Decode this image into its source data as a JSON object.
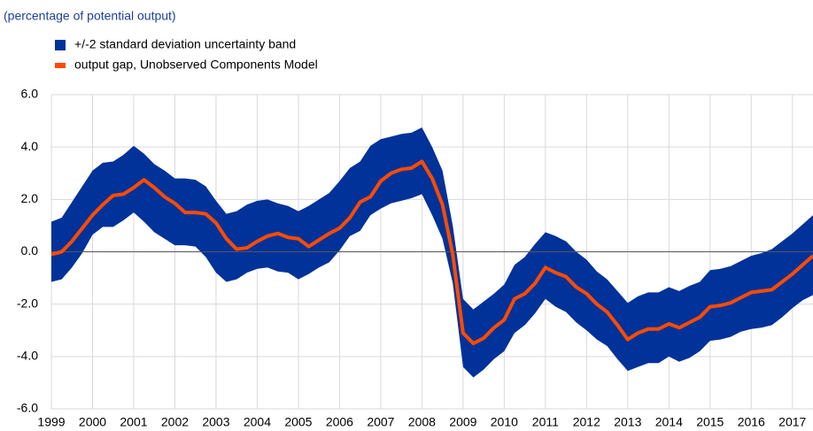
{
  "chart_data": {
    "type": "band-line",
    "subtitle": "(percentage of potential output)",
    "x": [
      1999,
      1999.25,
      1999.5,
      1999.75,
      2000,
      2000.25,
      2000.5,
      2000.75,
      2001,
      2001.25,
      2001.5,
      2001.75,
      2002,
      2002.25,
      2002.5,
      2002.75,
      2003,
      2003.25,
      2003.5,
      2003.75,
      2004,
      2004.25,
      2004.5,
      2004.75,
      2005,
      2005.25,
      2005.5,
      2005.75,
      2006,
      2006.25,
      2006.5,
      2006.75,
      2007,
      2007.25,
      2007.5,
      2007.75,
      2008,
      2008.25,
      2008.5,
      2008.75,
      2009,
      2009.25,
      2009.5,
      2009.75,
      2010,
      2010.25,
      2010.5,
      2010.75,
      2011,
      2011.25,
      2011.5,
      2011.75,
      2012,
      2012.25,
      2012.5,
      2012.75,
      2013,
      2013.25,
      2013.5,
      2013.75,
      2014,
      2014.25,
      2014.5,
      2014.75,
      2015,
      2015.25,
      2015.5,
      2015.75,
      2016,
      2016.25,
      2016.5,
      2016.75,
      2017,
      2017.25,
      2017.5
    ],
    "series": [
      {
        "name": "+/-2 standard deviation uncertainty band",
        "color": "#003299",
        "upper": [
          1.15,
          1.3,
          1.9,
          2.5,
          3.1,
          3.4,
          3.45,
          3.7,
          4.05,
          3.75,
          3.35,
          3.1,
          2.8,
          2.8,
          2.75,
          2.5,
          1.95,
          1.45,
          1.55,
          1.8,
          1.95,
          2.0,
          1.85,
          1.75,
          1.55,
          1.75,
          2.0,
          2.25,
          2.7,
          3.2,
          3.45,
          4.05,
          4.3,
          4.4,
          4.5,
          4.55,
          4.75,
          4.0,
          3.1,
          1.0,
          -1.8,
          -2.2,
          -1.9,
          -1.6,
          -1.25,
          -0.5,
          -0.2,
          0.3,
          0.75,
          0.6,
          0.4,
          0.0,
          -0.3,
          -0.75,
          -1.05,
          -1.5,
          -1.95,
          -1.7,
          -1.55,
          -1.55,
          -1.35,
          -1.5,
          -1.3,
          -1.15,
          -0.7,
          -0.65,
          -0.55,
          -0.35,
          -0.15,
          -0.05,
          0.1,
          0.4,
          0.7,
          1.05,
          1.4
        ],
        "lower": [
          -1.15,
          -1.05,
          -0.6,
          -0.05,
          0.65,
          0.95,
          0.95,
          1.2,
          1.5,
          1.15,
          0.75,
          0.5,
          0.25,
          0.25,
          0.2,
          -0.2,
          -0.8,
          -1.15,
          -1.05,
          -0.8,
          -0.65,
          -0.6,
          -0.75,
          -0.8,
          -1.05,
          -0.85,
          -0.6,
          -0.4,
          0.05,
          0.6,
          0.8,
          1.4,
          1.65,
          1.85,
          1.95,
          2.05,
          2.2,
          1.4,
          0.5,
          -1.2,
          -4.4,
          -4.8,
          -4.5,
          -4.1,
          -3.8,
          -3.1,
          -2.8,
          -2.35,
          -1.8,
          -2.1,
          -2.3,
          -2.7,
          -3.0,
          -3.35,
          -3.6,
          -4.1,
          -4.55,
          -4.4,
          -4.25,
          -4.25,
          -4.0,
          -4.2,
          -4.05,
          -3.8,
          -3.4,
          -3.35,
          -3.25,
          -3.05,
          -2.95,
          -2.9,
          -2.8,
          -2.5,
          -2.15,
          -1.85,
          -1.65
        ]
      },
      {
        "name": "output gap, Unobserved Components Model",
        "color": "#ff4b00",
        "values": [
          -0.1,
          0.0,
          0.4,
          0.9,
          1.4,
          1.8,
          2.15,
          2.2,
          2.45,
          2.75,
          2.45,
          2.1,
          1.85,
          1.5,
          1.5,
          1.45,
          1.1,
          0.5,
          0.1,
          0.15,
          0.4,
          0.6,
          0.7,
          0.55,
          0.5,
          0.2,
          0.45,
          0.7,
          0.9,
          1.3,
          1.9,
          2.1,
          2.7,
          3.0,
          3.15,
          3.2,
          3.45,
          2.8,
          1.8,
          -0.1,
          -3.1,
          -3.5,
          -3.3,
          -2.9,
          -2.6,
          -1.8,
          -1.6,
          -1.2,
          -0.6,
          -0.8,
          -0.95,
          -1.35,
          -1.6,
          -2.0,
          -2.3,
          -2.8,
          -3.35,
          -3.1,
          -2.95,
          -2.95,
          -2.75,
          -2.9,
          -2.7,
          -2.5,
          -2.1,
          -2.05,
          -1.95,
          -1.75,
          -1.55,
          -1.5,
          -1.45,
          -1.15,
          -0.85,
          -0.5,
          -0.15
        ]
      }
    ],
    "xlim": [
      1999,
      2017.5
    ],
    "xticks": [
      1999,
      2000,
      2001,
      2002,
      2003,
      2004,
      2005,
      2006,
      2007,
      2008,
      2009,
      2010,
      2011,
      2012,
      2013,
      2014,
      2015,
      2016,
      2017
    ],
    "ylim": [
      -6,
      6
    ],
    "yticks": [
      {
        "value": -6,
        "label": "-6.0"
      },
      {
        "value": -4,
        "label": "-4.0"
      },
      {
        "value": -2,
        "label": "-2.0"
      },
      {
        "value": 0,
        "label": "0.0"
      },
      {
        "value": 2,
        "label": "2.0"
      },
      {
        "value": 4,
        "label": "4.0"
      },
      {
        "value": 6,
        "label": "6.0"
      }
    ],
    "grid": true
  }
}
